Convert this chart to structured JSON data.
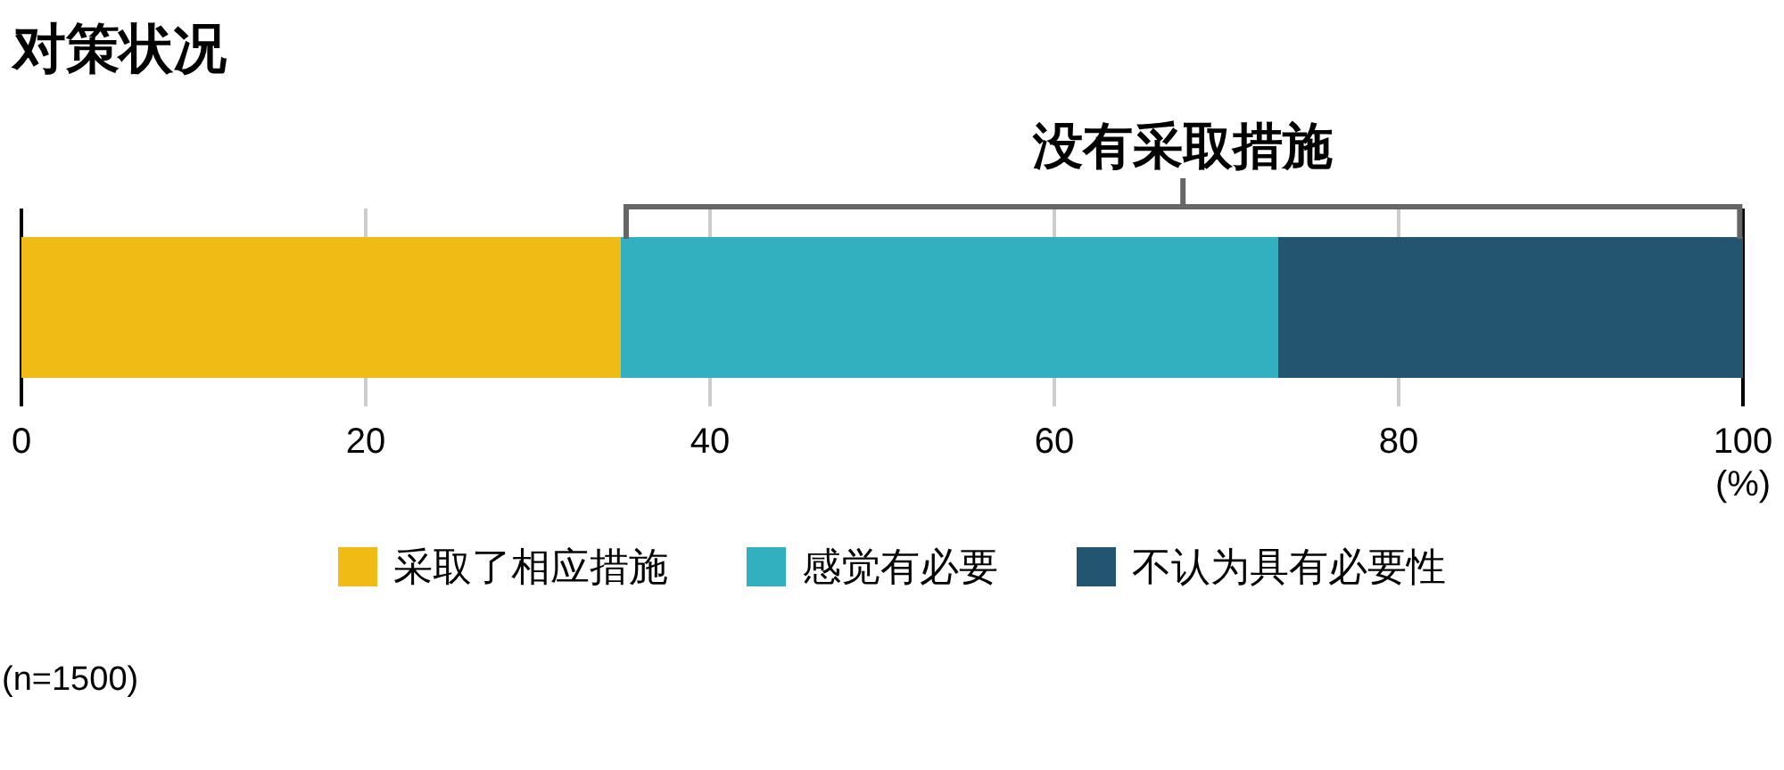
{
  "chart_data": {
    "type": "bar",
    "title": "对策状况",
    "xlabel": "(%)",
    "annotations": [
      "没有采取措施",
      "(n=1500)"
    ],
    "categories": [
      null
    ],
    "orientation": "horizontal",
    "stacked": true,
    "series": [
      {
        "name": "采取了相应措施",
        "color": "#f0bb15",
        "values": [
          34.8
        ]
      },
      {
        "name": "感觉有必要",
        "color": "#33b0bf",
        "values": [
          38.2
        ]
      },
      {
        "name": "不认为具有必要性",
        "color": "#235470",
        "values": [
          27.0
        ]
      }
    ],
    "xlim": [
      0,
      100
    ],
    "xticks": [
      0,
      20,
      40,
      60,
      80,
      100
    ],
    "grid": "x",
    "legend": "bottom"
  }
}
